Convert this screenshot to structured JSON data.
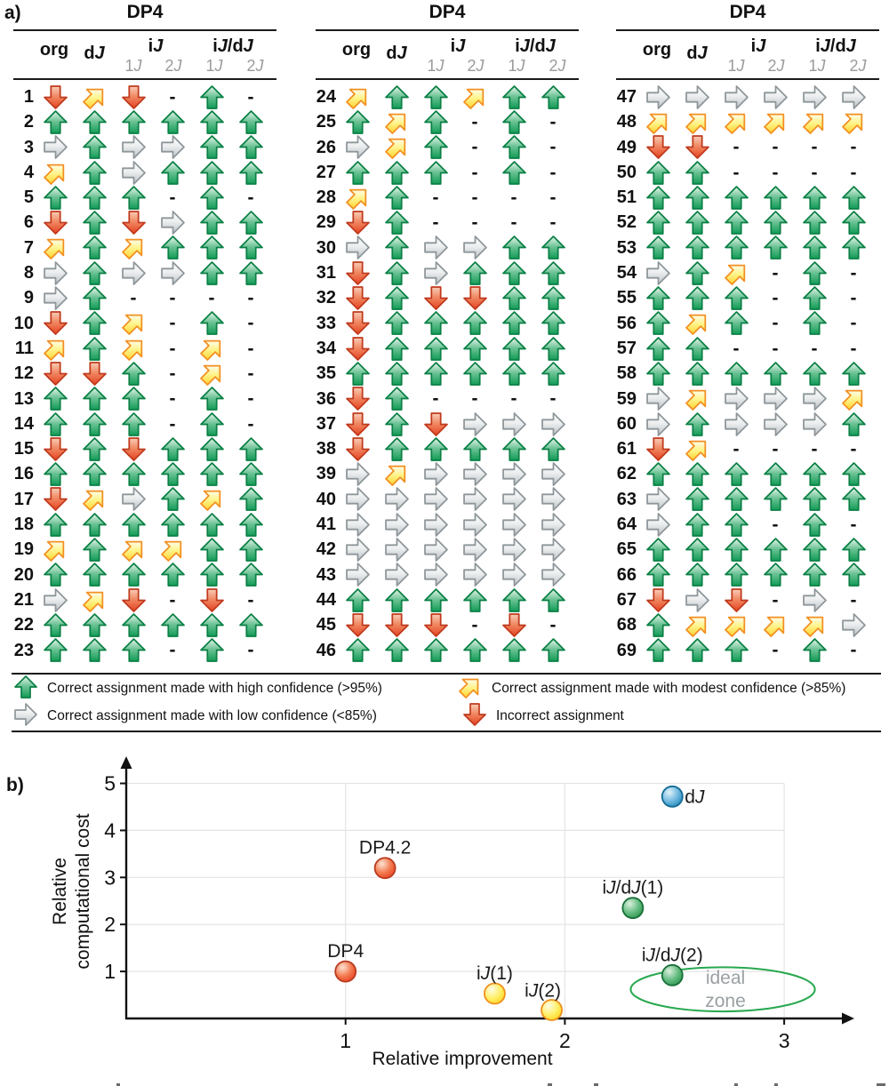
{
  "panel_a": {
    "label": "a)",
    "group_title": "DP4",
    "columns": {
      "org": "org",
      "dJ": "dJ",
      "iJ": "iJ",
      "iJdJ": "iJ/dJ",
      "sub": [
        "1J",
        "2J",
        "1J",
        "2J"
      ]
    },
    "symbol_names": {
      "G": "arrow-up-green",
      "Y": "arrow-diagonal-yellow",
      "g": "arrow-right-gray",
      "R": "arrow-down-red",
      "-": "no-data-dash"
    },
    "tables": [
      {
        "start": 1,
        "rows": [
          [
            "R",
            "Y",
            "R",
            "-",
            "G",
            "-"
          ],
          [
            "G",
            "G",
            "G",
            "G",
            "G",
            "G"
          ],
          [
            "g",
            "G",
            "g",
            "g",
            "G",
            "G"
          ],
          [
            "Y",
            "G",
            "g",
            "G",
            "G",
            "G"
          ],
          [
            "G",
            "G",
            "G",
            "-",
            "G",
            "-"
          ],
          [
            "R",
            "G",
            "R",
            "g",
            "G",
            "G"
          ],
          [
            "Y",
            "G",
            "Y",
            "G",
            "G",
            "G"
          ],
          [
            "g",
            "G",
            "g",
            "g",
            "G",
            "G"
          ],
          [
            "g",
            "G",
            "-",
            "-",
            "-",
            "-"
          ],
          [
            "R",
            "G",
            "Y",
            "-",
            "G",
            "-"
          ],
          [
            "Y",
            "G",
            "Y",
            "-",
            "Y",
            "-"
          ],
          [
            "R",
            "R",
            "G",
            "-",
            "Y",
            "-"
          ],
          [
            "G",
            "G",
            "G",
            "-",
            "G",
            "-"
          ],
          [
            "G",
            "G",
            "G",
            "-",
            "G",
            "-"
          ],
          [
            "R",
            "G",
            "R",
            "G",
            "G",
            "G"
          ],
          [
            "G",
            "G",
            "G",
            "G",
            "G",
            "G"
          ],
          [
            "R",
            "Y",
            "g",
            "G",
            "Y",
            "G"
          ],
          [
            "G",
            "G",
            "G",
            "G",
            "G",
            "G"
          ],
          [
            "Y",
            "G",
            "Y",
            "Y",
            "G",
            "G"
          ],
          [
            "G",
            "G",
            "G",
            "G",
            "G",
            "G"
          ],
          [
            "g",
            "Y",
            "R",
            "-",
            "R",
            "-"
          ],
          [
            "G",
            "G",
            "G",
            "G",
            "G",
            "G"
          ],
          [
            "G",
            "G",
            "G",
            "-",
            "G",
            "-"
          ]
        ]
      },
      {
        "start": 24,
        "rows": [
          [
            "Y",
            "G",
            "G",
            "Y",
            "G",
            "G"
          ],
          [
            "G",
            "Y",
            "G",
            "-",
            "G",
            "-"
          ],
          [
            "g",
            "Y",
            "G",
            "-",
            "G",
            "-"
          ],
          [
            "G",
            "G",
            "G",
            "-",
            "G",
            "-"
          ],
          [
            "Y",
            "G",
            "-",
            "-",
            "-",
            "-"
          ],
          [
            "R",
            "G",
            "-",
            "-",
            "-",
            "-"
          ],
          [
            "g",
            "G",
            "g",
            "g",
            "G",
            "G"
          ],
          [
            "R",
            "G",
            "g",
            "G",
            "G",
            "G"
          ],
          [
            "R",
            "G",
            "R",
            "R",
            "G",
            "G"
          ],
          [
            "R",
            "G",
            "G",
            "G",
            "G",
            "G"
          ],
          [
            "R",
            "G",
            "G",
            "G",
            "G",
            "G"
          ],
          [
            "G",
            "G",
            "G",
            "G",
            "G",
            "G"
          ],
          [
            "R",
            "G",
            "-",
            "-",
            "-",
            "-"
          ],
          [
            "R",
            "G",
            "R",
            "g",
            "g",
            "g"
          ],
          [
            "R",
            "G",
            "G",
            "G",
            "G",
            "G"
          ],
          [
            "g",
            "Y",
            "g",
            "g",
            "g",
            "g"
          ],
          [
            "g",
            "g",
            "g",
            "g",
            "g",
            "g"
          ],
          [
            "g",
            "g",
            "g",
            "g",
            "g",
            "g"
          ],
          [
            "g",
            "g",
            "g",
            "g",
            "g",
            "g"
          ],
          [
            "g",
            "g",
            "g",
            "g",
            "g",
            "g"
          ],
          [
            "G",
            "G",
            "G",
            "G",
            "G",
            "G"
          ],
          [
            "R",
            "R",
            "R",
            "-",
            "R",
            "-"
          ],
          [
            "G",
            "G",
            "G",
            "G",
            "G",
            "G"
          ]
        ]
      },
      {
        "start": 47,
        "rows": [
          [
            "g",
            "g",
            "g",
            "g",
            "g",
            "g"
          ],
          [
            "Y",
            "Y",
            "Y",
            "Y",
            "Y",
            "Y"
          ],
          [
            "R",
            "R",
            "-",
            "-",
            "-",
            "-"
          ],
          [
            "G",
            "G",
            "-",
            "-",
            "-",
            "-"
          ],
          [
            "G",
            "G",
            "G",
            "G",
            "G",
            "G"
          ],
          [
            "G",
            "G",
            "G",
            "G",
            "G",
            "G"
          ],
          [
            "G",
            "G",
            "G",
            "G",
            "G",
            "G"
          ],
          [
            "g",
            "G",
            "Y",
            "-",
            "G",
            "-"
          ],
          [
            "G",
            "G",
            "G",
            "-",
            "G",
            "-"
          ],
          [
            "G",
            "Y",
            "G",
            "-",
            "G",
            "-"
          ],
          [
            "G",
            "G",
            "-",
            "-",
            "-",
            "-"
          ],
          [
            "G",
            "G",
            "G",
            "G",
            "G",
            "G"
          ],
          [
            "g",
            "Y",
            "g",
            "g",
            "g",
            "Y"
          ],
          [
            "g",
            "G",
            "g",
            "g",
            "g",
            "G"
          ],
          [
            "R",
            "Y",
            "-",
            "-",
            "-",
            "-"
          ],
          [
            "G",
            "G",
            "G",
            "G",
            "G",
            "G"
          ],
          [
            "g",
            "G",
            "G",
            "G",
            "G",
            "G"
          ],
          [
            "g",
            "G",
            "G",
            "-",
            "G",
            "-"
          ],
          [
            "G",
            "G",
            "G",
            "G",
            "G",
            "G"
          ],
          [
            "G",
            "G",
            "G",
            "G",
            "G",
            "G"
          ],
          [
            "R",
            "g",
            "R",
            "-",
            "g",
            "-"
          ],
          [
            "G",
            "Y",
            "Y",
            "Y",
            "Y",
            "g"
          ],
          [
            "G",
            "G",
            "G",
            "-",
            "G",
            "-"
          ]
        ]
      }
    ],
    "legend": [
      {
        "symbol": "G",
        "text": "Correct assignment made with high confidence (>95%)"
      },
      {
        "symbol": "Y",
        "text": "Correct assignment made with modest confidence (>85%)"
      },
      {
        "symbol": "g",
        "text": "Correct assignment made with low confidence (<85%)"
      },
      {
        "symbol": "R",
        "text": "Incorrect assignment"
      }
    ]
  },
  "colors": {
    "arrow_green": {
      "fill_top": "#e8f6ee",
      "fill_mid": "#6fc497",
      "fill_bottom": "#119b56",
      "stroke": "#0b8045"
    },
    "arrow_yellow": {
      "fill_top": "#fffde8",
      "fill_mid": "#fff48c",
      "fill_bottom": "#ffd22e",
      "stroke": "#f29022"
    },
    "arrow_gray": {
      "fill_top": "#ffffff",
      "fill_mid": "#eceeef",
      "fill_bottom": "#bcc2c5",
      "stroke": "#8e969a"
    },
    "arrow_red": {
      "fill_top": "#f9cdb8",
      "fill_mid": "#f08a64",
      "fill_bottom": "#e64221",
      "stroke": "#c03a1d"
    }
  },
  "panel_b": {
    "label": "b)"
  },
  "chart_data": {
    "type": "scatter",
    "xlabel": "Relative improvement",
    "ylabel_lines": [
      "Relative",
      "computational cost"
    ],
    "xticks": [
      1,
      2,
      3
    ],
    "yticks": [
      1,
      2,
      3,
      4,
      5
    ],
    "xlim": [
      0,
      3.3
    ],
    "ylim": [
      0,
      5.45
    ],
    "grid": true,
    "points": [
      {
        "label": "DP4",
        "x": 1.0,
        "y": 1.0,
        "color": "red",
        "label_pos": "above"
      },
      {
        "label": "DP4.2",
        "x": 1.18,
        "y": 3.2,
        "color": "red",
        "label_pos": "above"
      },
      {
        "label": "dJ",
        "x": 2.49,
        "y": 4.72,
        "color": "blue",
        "label_pos": "right"
      },
      {
        "label": "iJ/dJ(1)",
        "x": 2.31,
        "y": 2.35,
        "color": "green",
        "label_pos": "above"
      },
      {
        "label": "iJ/dJ(2)",
        "x": 2.49,
        "y": 0.92,
        "color": "green",
        "label_pos": "above"
      },
      {
        "label": "iJ(1)",
        "x": 1.68,
        "y": 0.53,
        "color": "yellow",
        "label_pos": "above"
      },
      {
        "label": "iJ(2)",
        "x": 1.94,
        "y": 0.18,
        "color": "yellow",
        "label_pos": "above-left"
      }
    ],
    "annotation": {
      "lines": [
        "ideal",
        "zone"
      ],
      "text_color": "#9aa0a3",
      "ellipse": {
        "cx": 2.72,
        "cy": 0.62,
        "rx": 0.42,
        "ry": 0.47,
        "stroke": "#27a84e"
      }
    },
    "point_colors": {
      "red": {
        "light": "#fde3d2",
        "mid": "#f37a50",
        "dark": "#e8401f",
        "stroke": "#b93a1e"
      },
      "blue": {
        "light": "#e2f2fb",
        "mid": "#70b9df",
        "dark": "#1f86bb",
        "stroke": "#156a95"
      },
      "green": {
        "light": "#dcefdc",
        "mid": "#66bd83",
        "dark": "#2a9149",
        "stroke": "#187038"
      },
      "yellow": {
        "light": "#fffce5",
        "mid": "#fff069",
        "dark": "#ffd21c",
        "stroke": "#ef8f1b"
      }
    }
  }
}
